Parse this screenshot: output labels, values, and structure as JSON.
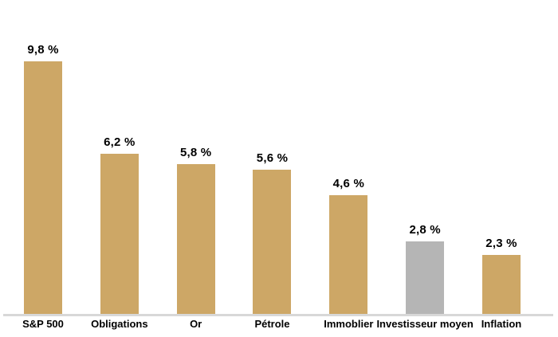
{
  "chart_data": {
    "type": "bar",
    "title": "",
    "xlabel": "",
    "ylabel": "",
    "categories": [
      "S&P 500",
      "Obligations",
      "Or",
      "Pétrole",
      "Immoblier",
      "Investisseur moyen",
      "Inflation"
    ],
    "values": [
      9.8,
      6.2,
      5.8,
      5.6,
      4.6,
      2.8,
      2.3
    ],
    "value_labels": [
      "9,8 %",
      "6,2 %",
      "5,8 %",
      "5,6 %",
      "4,6 %",
      "2,8 %",
      "2,3 %"
    ],
    "ylim": [
      0,
      10.5
    ],
    "grid": false,
    "legend": false,
    "axes_visible": "x-baseline-only",
    "highlight_index": 5,
    "colors": {
      "bar_default": "#CDA766",
      "bar_highlight": "#B5B5B5",
      "baseline": "#D8D8D8",
      "label_text": "#000000",
      "background": "#FFFFFF"
    }
  }
}
